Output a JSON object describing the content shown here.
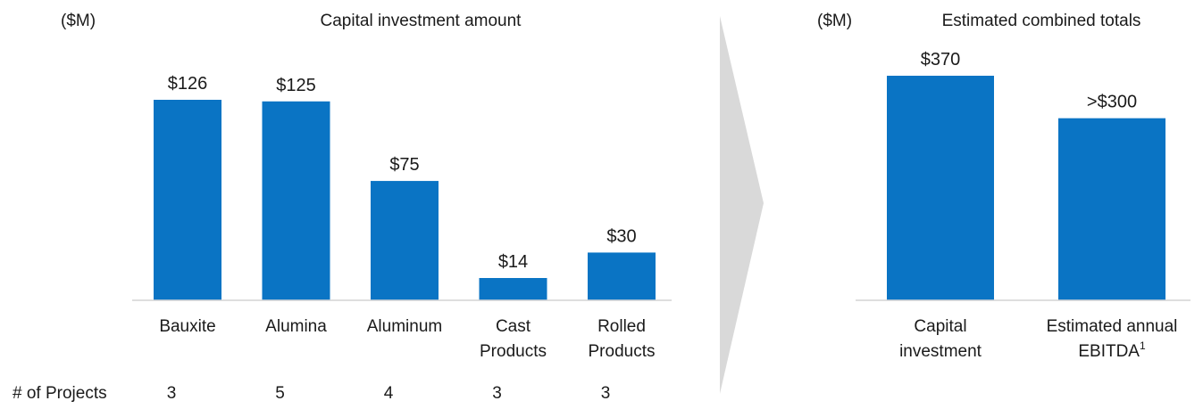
{
  "chart_data": [
    {
      "type": "bar",
      "unit_label": "($M)",
      "title": "Capital investment amount",
      "categories": [
        [
          "Bauxite"
        ],
        [
          "Alumina"
        ],
        [
          "Aluminum"
        ],
        [
          "Cast",
          "Products"
        ],
        [
          "Rolled",
          "Products"
        ]
      ],
      "values": [
        126,
        125,
        75,
        14,
        30
      ],
      "value_labels": [
        "$126",
        "$125",
        "$75",
        "$14",
        "$30"
      ],
      "projects_label": "# of Projects",
      "projects": [
        "3",
        "5",
        "4",
        "3",
        "3"
      ],
      "color": "#0a74c4"
    },
    {
      "type": "bar",
      "unit_label": "($M)",
      "title": "Estimated combined totals",
      "categories": [
        [
          "Capital",
          "investment"
        ],
        [
          "Estimated annual",
          "EBITDA"
        ]
      ],
      "category_superscripts": [
        "",
        "1"
      ],
      "values": [
        370,
        300
      ],
      "value_labels": [
        "$370",
        ">$300"
      ],
      "color": "#0a74c4"
    }
  ],
  "arrow_color": "#d9d9d9"
}
